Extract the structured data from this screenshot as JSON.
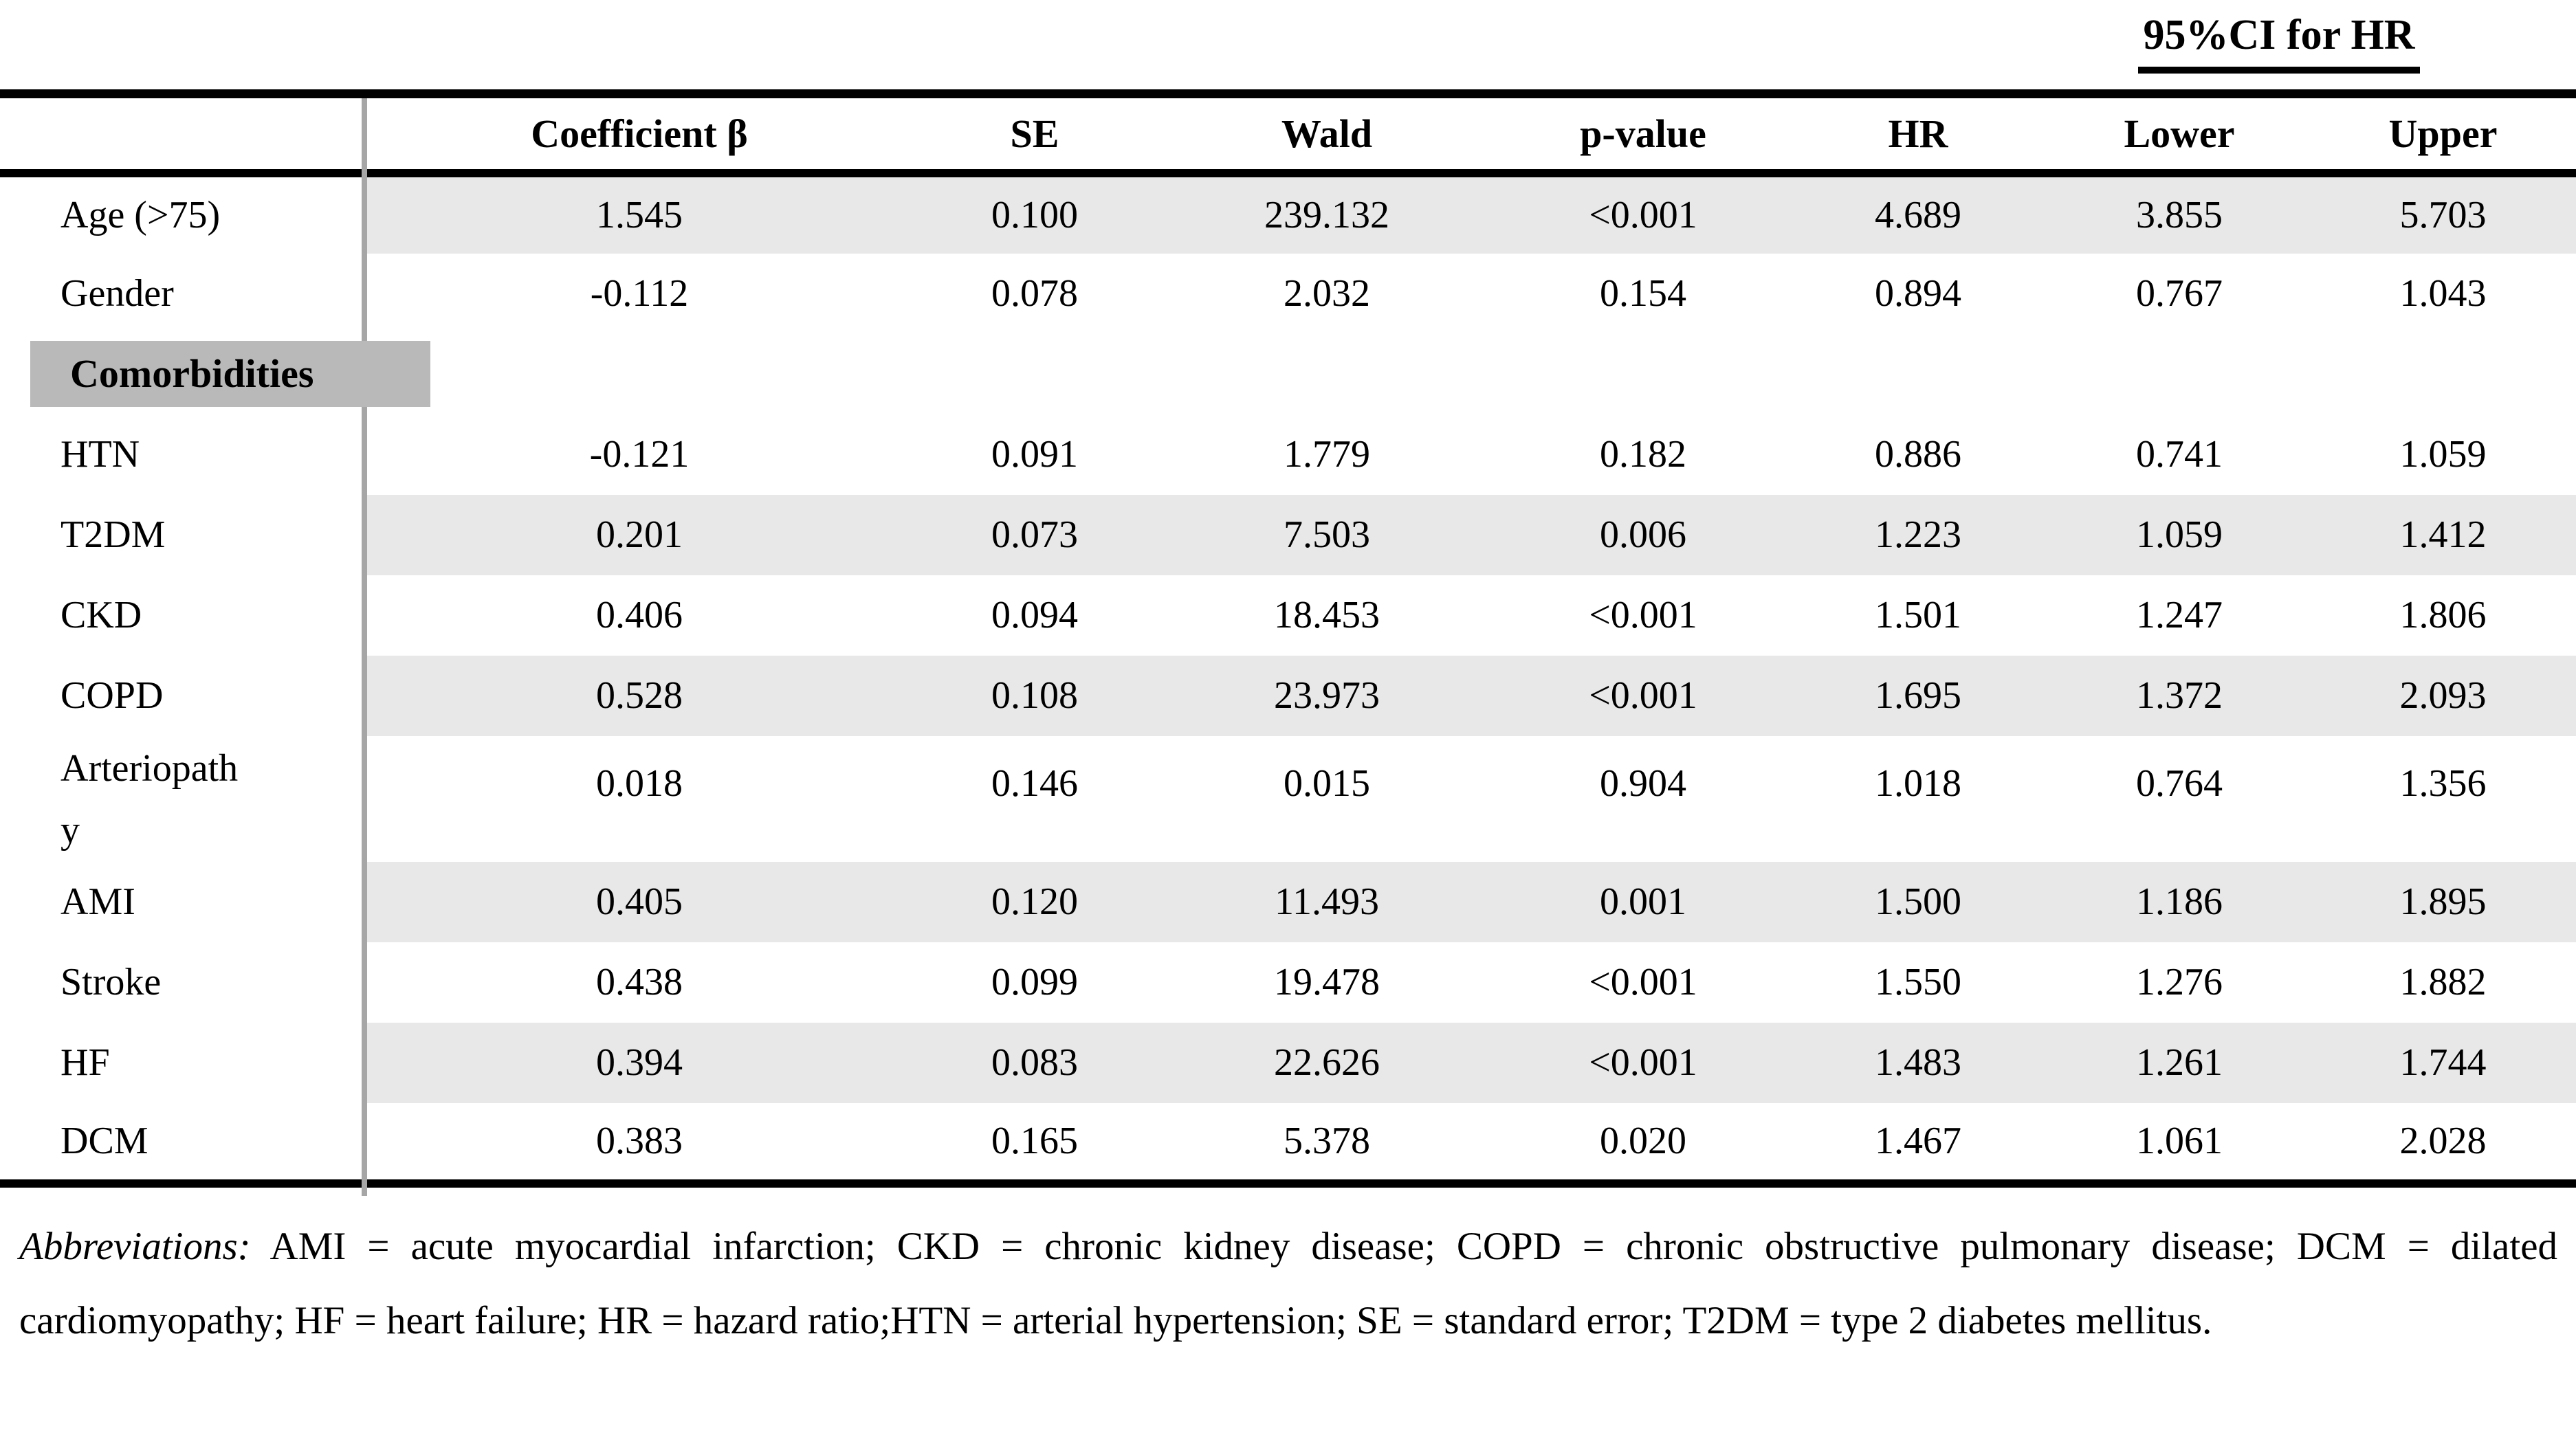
{
  "ci_header": {
    "label": "95%CI for HR"
  },
  "table": {
    "columns": [
      "",
      "Coefficient β",
      "SE",
      "Wald",
      "p-value",
      "HR",
      "Lower",
      "Upper"
    ],
    "rows": [
      {
        "label": "Age (>75)",
        "values": [
          "1.545",
          "0.100",
          "239.132",
          "<0.001",
          "4.689",
          "3.855",
          "5.703"
        ],
        "shaded": true
      },
      {
        "label": "Gender",
        "values": [
          "-0.112",
          "0.078",
          "2.032",
          "0.154",
          "0.894",
          "0.767",
          "1.043"
        ],
        "shaded": false
      },
      {
        "label": "Comorbidities",
        "section": true
      },
      {
        "label": "HTN",
        "values": [
          "-0.121",
          "0.091",
          "1.779",
          "0.182",
          "0.886",
          "0.741",
          "1.059"
        ],
        "shaded": false
      },
      {
        "label": "T2DM",
        "values": [
          "0.201",
          "0.073",
          "7.503",
          "0.006",
          "1.223",
          "1.059",
          "1.412"
        ],
        "shaded": true
      },
      {
        "label": "CKD",
        "values": [
          "0.406",
          "0.094",
          "18.453",
          "<0.001",
          "1.501",
          "1.247",
          "1.806"
        ],
        "shaded": false
      },
      {
        "label": "COPD",
        "values": [
          "0.528",
          "0.108",
          "23.973",
          "<0.001",
          "1.695",
          "1.372",
          "2.093"
        ],
        "shaded": true
      },
      {
        "label": "Arteriopathy",
        "values": [
          "0.018",
          "0.146",
          "0.015",
          "0.904",
          "1.018",
          "0.764",
          "1.356"
        ],
        "shaded": false,
        "tall": true
      },
      {
        "label": "AMI",
        "values": [
          "0.405",
          "0.120",
          "11.493",
          "0.001",
          "1.500",
          "1.186",
          "1.895"
        ],
        "shaded": true
      },
      {
        "label": "Stroke",
        "values": [
          "0.438",
          "0.099",
          "19.478",
          "<0.001",
          "1.550",
          "1.276",
          "1.882"
        ],
        "shaded": false
      },
      {
        "label": "HF",
        "values": [
          "0.394",
          "0.083",
          "22.626",
          "<0.001",
          "1.483",
          "1.261",
          "1.744"
        ],
        "shaded": true
      },
      {
        "label": "DCM",
        "values": [
          "0.383",
          "0.165",
          "5.378",
          "0.020",
          "1.467",
          "1.061",
          "2.028"
        ],
        "shaded": false
      }
    ]
  },
  "footnote": {
    "lead": "Abbreviations:",
    "text": " AMI = acute myocardial infarction; CKD = chronic kidney disease; COPD = chronic obstructive pulmonary disease; DCM = dilated cardiomyopathy; HF = heart failure; HR = hazard ratio;HTN = arterial hypertension; SE = standard error; T2DM = type 2 diabetes mellitus."
  },
  "colors": {
    "row_stripe": "#e8e8e8",
    "section_chip": "#b9b9b9",
    "column_divider": "#a6a6a6",
    "rule": "#000000"
  }
}
